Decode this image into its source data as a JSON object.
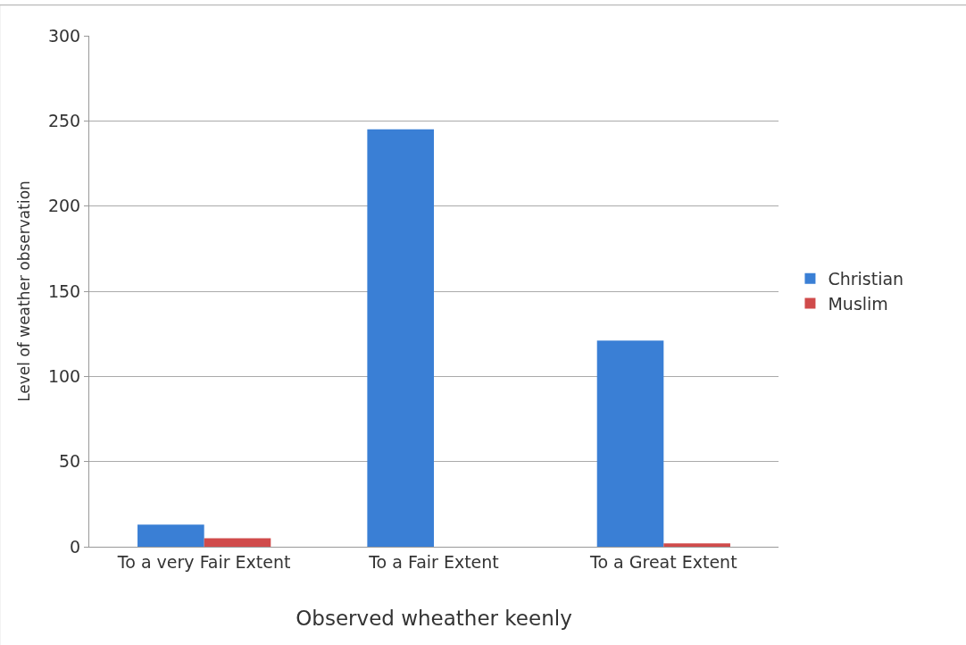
{
  "chart_data": {
    "type": "bar",
    "xlabel": "Observed wheather keenly",
    "ylabel": "Level of weather observation",
    "categories": [
      "To a very Fair Extent",
      "To a Fair Extent",
      "To a Great Extent"
    ],
    "series": [
      {
        "name": "Christian",
        "color": "#3a7fd5",
        "values": [
          13,
          245,
          121
        ]
      },
      {
        "name": "Muslim",
        "color": "#d04b4b",
        "values": [
          5,
          0,
          2
        ]
      }
    ],
    "ylim": [
      0,
      300
    ],
    "yticks": [
      0,
      50,
      100,
      150,
      200,
      250,
      300
    ],
    "grid": "y",
    "legend": "right"
  }
}
